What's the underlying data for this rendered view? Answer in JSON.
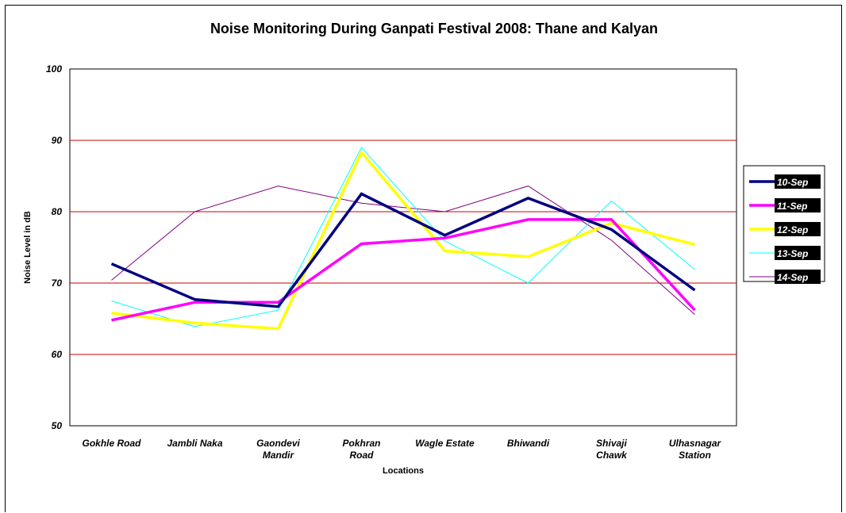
{
  "chart_data": {
    "type": "line",
    "title": "Noise Monitoring During Ganpati Festival 2008: Thane and Kalyan",
    "xlabel": "Locations",
    "ylabel": "Noise Level in dB",
    "ylim": [
      50,
      100
    ],
    "yticks": [
      "50",
      "60",
      "70",
      "80",
      "90",
      "100"
    ],
    "categories": [
      [
        "Gokhle Road"
      ],
      [
        "Jambli Naka"
      ],
      [
        "Gaondevi",
        "Mandir"
      ],
      [
        "Pokhran",
        "Road"
      ],
      [
        "Wagle Estate"
      ],
      [
        "Bhiwandi"
      ],
      [
        "Shivaji",
        "Chawk"
      ],
      [
        "Ulhasnagar",
        "Station"
      ]
    ],
    "grid": "horizontal",
    "legend_position": "right",
    "series": [
      {
        "name": "10-Sep",
        "color": "#000080",
        "values": [
          72.7,
          67.7,
          66.7,
          82.5,
          76.7,
          81.9,
          77.5,
          69.0
        ]
      },
      {
        "name": "11-Sep",
        "color": "#ff00ff",
        "values": [
          64.8,
          67.3,
          67.3,
          75.5,
          76.3,
          78.9,
          78.9,
          66.2
        ]
      },
      {
        "name": "12-Sep",
        "color": "#ffff00",
        "values": [
          65.8,
          64.4,
          63.6,
          88.3,
          74.5,
          73.7,
          78.4,
          75.4
        ]
      },
      {
        "name": "13-Sep",
        "color": "#00ffff",
        "values": [
          67.5,
          63.9,
          66.2,
          89.0,
          75.9,
          70.0,
          81.5,
          71.9
        ]
      },
      {
        "name": "14-Sep",
        "color": "#800080",
        "values": [
          70.4,
          80.0,
          83.6,
          81.2,
          80.0,
          83.6,
          76.0,
          65.6
        ]
      }
    ]
  }
}
